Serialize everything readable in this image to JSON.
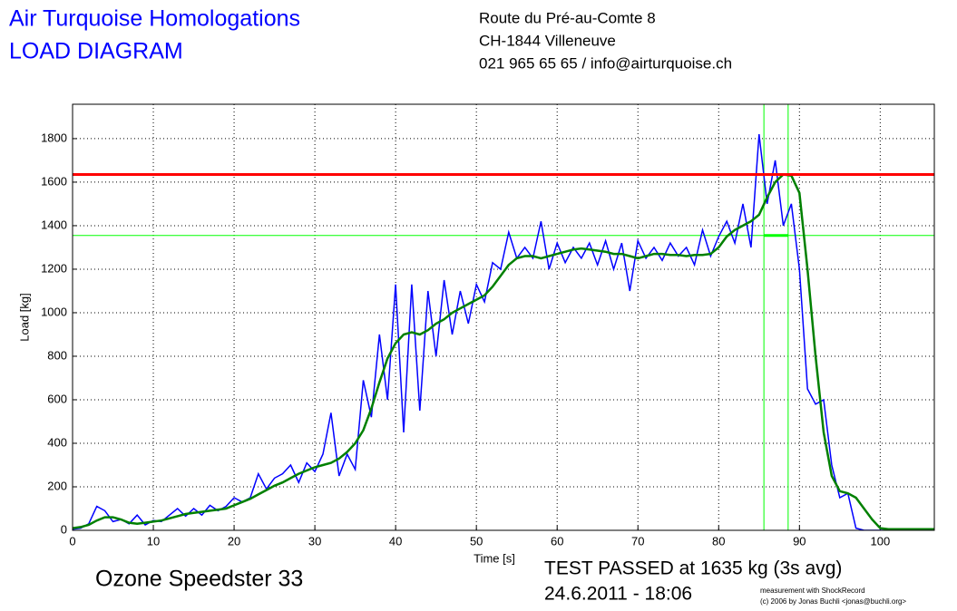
{
  "chart_data": {
    "type": "line",
    "title": "Air Turquoise Homologations",
    "subtitle": "LOAD DIAGRAM",
    "address": [
      "Route du Pré-au-Comte 8",
      "CH-1844 Villeneuve",
      "021 965 65 65 / info@airturquoise.ch"
    ],
    "glider": "Ozone Speedster 33",
    "result": "TEST PASSED at 1635 kg (3s avg)",
    "date": "24.6.2011 - 18:06",
    "credits": [
      "measurement with ShockRecord",
      "(c) 2006 by Jonas Buchli <jonas@buchli.org>"
    ],
    "xlabel": "Time [s]",
    "ylabel": "Load [kg]",
    "xlim": [
      0,
      106.7
    ],
    "ylim": [
      0,
      1958
    ],
    "xticks": [
      0,
      10,
      20,
      30,
      40,
      50,
      60,
      70,
      80,
      90,
      100
    ],
    "yticks": [
      0,
      200,
      400,
      600,
      800,
      1000,
      1200,
      1400,
      1600,
      1800
    ],
    "grid": true,
    "x": [
      0,
      1,
      2,
      3,
      4,
      5,
      6,
      7,
      8,
      9,
      10,
      11,
      12,
      13,
      14,
      15,
      16,
      17,
      18,
      19,
      20,
      21,
      22,
      23,
      24,
      25,
      26,
      27,
      28,
      29,
      30,
      31,
      32,
      33,
      34,
      35,
      36,
      37,
      38,
      39,
      40,
      41,
      42,
      43,
      44,
      45,
      46,
      47,
      48,
      49,
      50,
      51,
      52,
      53,
      54,
      55,
      56,
      57,
      58,
      59,
      60,
      61,
      62,
      63,
      64,
      65,
      66,
      67,
      68,
      69,
      70,
      71,
      72,
      73,
      74,
      75,
      76,
      77,
      78,
      79,
      80,
      81,
      82,
      83,
      84,
      85,
      86,
      87,
      88,
      89,
      90,
      91,
      92,
      93,
      94,
      95,
      96,
      97,
      98,
      99,
      100,
      101,
      102,
      103,
      104,
      105,
      106,
      107
    ],
    "series": [
      {
        "color": "#0000ff",
        "values": [
          5,
          10,
          30,
          110,
          90,
          40,
          50,
          30,
          70,
          25,
          45,
          40,
          70,
          100,
          65,
          100,
          70,
          115,
          90,
          110,
          150,
          130,
          150,
          260,
          190,
          240,
          260,
          300,
          220,
          310,
          270,
          350,
          540,
          250,
          350,
          280,
          690,
          520,
          900,
          600,
          1130,
          450,
          1130,
          550,
          1100,
          800,
          1150,
          900,
          1100,
          950,
          1130,
          1050,
          1230,
          1200,
          1370,
          1250,
          1300,
          1250,
          1420,
          1200,
          1320,
          1230,
          1300,
          1250,
          1320,
          1220,
          1330,
          1200,
          1320,
          1100,
          1330,
          1250,
          1300,
          1240,
          1320,
          1260,
          1300,
          1220,
          1380,
          1260,
          1350,
          1420,
          1320,
          1500,
          1300,
          1820,
          1500,
          1700,
          1400,
          1500,
          1200,
          650,
          580,
          600,
          300,
          150,
          170,
          10,
          0,
          0,
          0,
          0,
          0,
          0,
          0,
          0,
          0,
          0
        ]
      },
      {
        "color": "#008000",
        "values": [
          10,
          15,
          25,
          45,
          60,
          60,
          50,
          35,
          30,
          35,
          40,
          45,
          55,
          65,
          75,
          80,
          85,
          90,
          95,
          100,
          115,
          130,
          145,
          165,
          185,
          205,
          220,
          240,
          260,
          275,
          290,
          300,
          310,
          330,
          360,
          400,
          460,
          560,
          680,
          790,
          860,
          900,
          910,
          900,
          920,
          950,
          970,
          1000,
          1020,
          1040,
          1060,
          1080,
          1120,
          1170,
          1220,
          1250,
          1260,
          1260,
          1250,
          1260,
          1270,
          1280,
          1290,
          1295,
          1290,
          1285,
          1280,
          1270,
          1270,
          1260,
          1250,
          1260,
          1270,
          1270,
          1265,
          1265,
          1260,
          1265,
          1265,
          1270,
          1300,
          1350,
          1380,
          1400,
          1420,
          1450,
          1530,
          1600,
          1635,
          1630,
          1550,
          1200,
          800,
          450,
          250,
          180,
          170,
          150,
          100,
          50,
          10,
          5,
          5,
          5,
          5,
          5,
          5,
          5
        ]
      }
    ],
    "threshold": {
      "value": 1635,
      "color": "#ff0000"
    },
    "markers": {
      "x": [
        85.6,
        88.6
      ],
      "y": 1355,
      "color": "#00ff00"
    }
  }
}
